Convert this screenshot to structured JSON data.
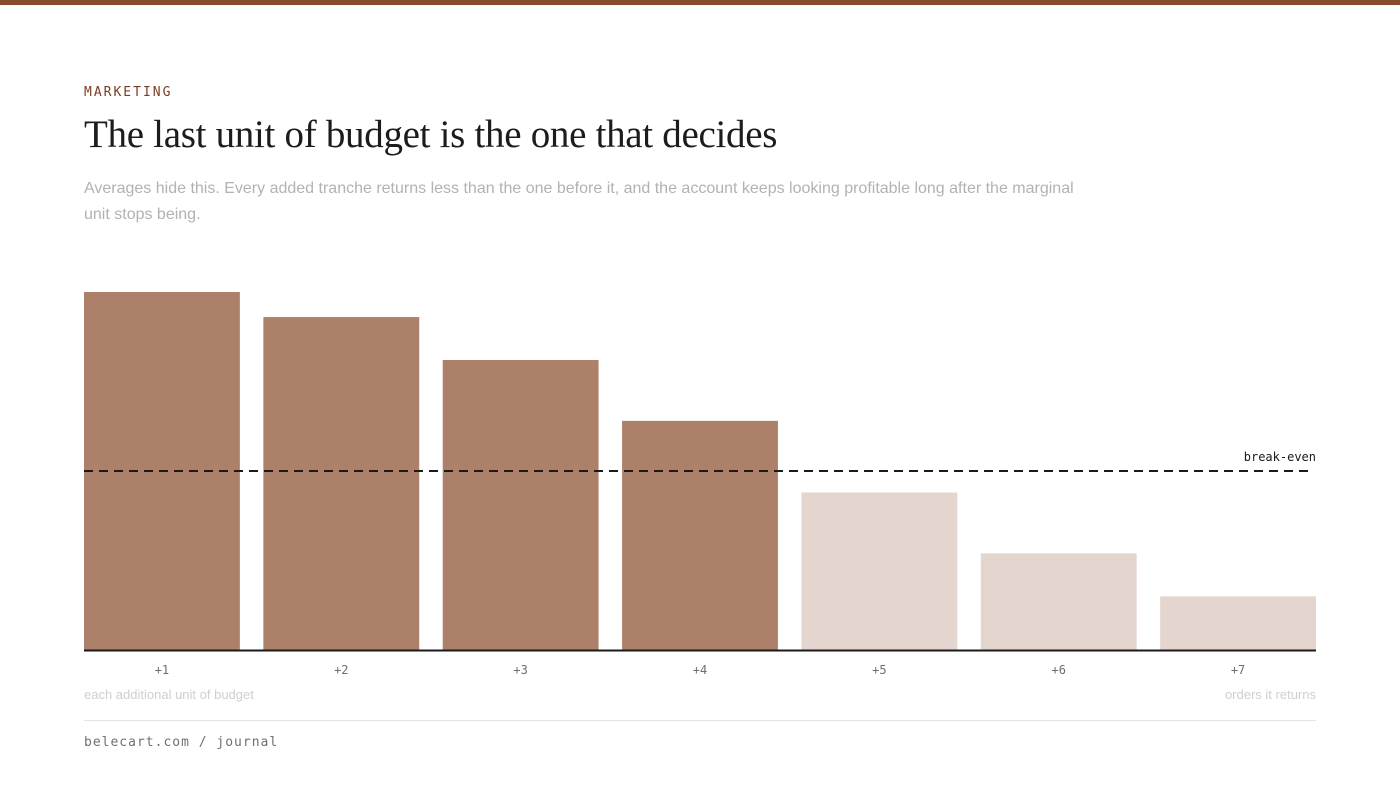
{
  "colors": {
    "accent": "#8a4a2c",
    "eyebrow": "#7a3d24",
    "bar_above": "#ad806a",
    "bar_below": "#e4d6ce",
    "baseline": "#1a1a1a",
    "reference_line": "#1a1a1a"
  },
  "header": {
    "eyebrow": "MARKETING",
    "title": "The last unit of budget is the one that decides",
    "dek": "Averages hide this. Every added tranche returns less than the one before it, and the account keeps looking profitable long after the marginal unit stops being."
  },
  "chart_data": {
    "type": "bar",
    "categories": [
      "+1",
      "+2",
      "+3",
      "+4",
      "+5",
      "+6",
      "+7"
    ],
    "values": [
      100,
      93,
      81,
      64,
      44,
      27,
      15
    ],
    "ylim": [
      0,
      100
    ],
    "reference_line": {
      "label": "break-even",
      "value": 50,
      "style": "dashed"
    },
    "xlabel": "each additional unit of budget",
    "ylabel": "orders it returns",
    "grid": false,
    "legend": "none"
  },
  "footer": {
    "source": "belecart.com / journal"
  }
}
